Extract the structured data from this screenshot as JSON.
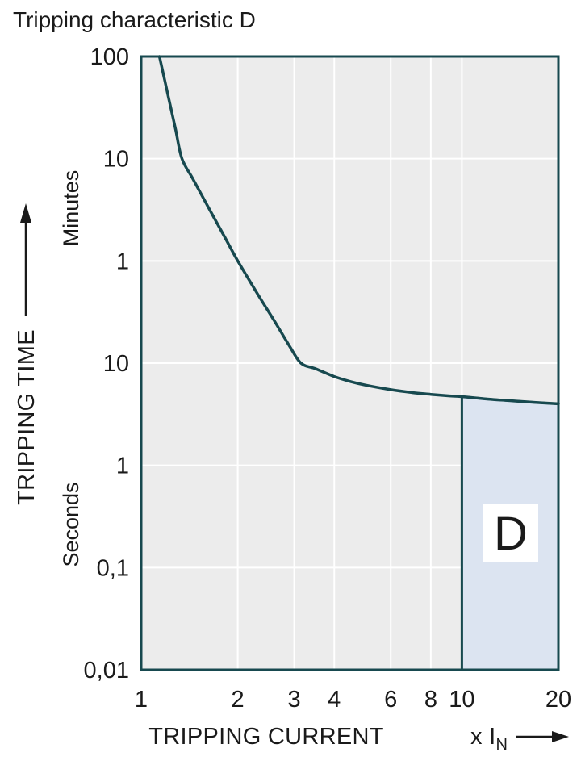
{
  "colors": {
    "line": "#17494f",
    "plot_bg": "#ececec",
    "grid": "#ffffff",
    "region_fill": "#dce4f1",
    "region_label_bg": "#ffffff",
    "text": "#1a1a1a"
  },
  "chart_data": {
    "type": "line",
    "title": "Tripping characteristic D",
    "xlabel": "TRIPPING CURRENT",
    "x_unit": "x I",
    "x_unit_sub": "N",
    "ylabel": "TRIPPING TIME",
    "y_unit_upper": "Minutes",
    "y_unit_lower": "Seconds",
    "x_scale": "log",
    "x_domain": [
      1,
      20
    ],
    "x_ticks": [
      {
        "v": 1,
        "label": "1"
      },
      {
        "v": 2,
        "label": "2"
      },
      {
        "v": 3,
        "label": "3"
      },
      {
        "v": 4,
        "label": "4"
      },
      {
        "v": 6,
        "label": "6"
      },
      {
        "v": 8,
        "label": "8"
      },
      {
        "v": 10,
        "label": "10"
      },
      {
        "v": 20,
        "label": "20"
      }
    ],
    "y_scale": "log, split into Seconds and Minutes decades",
    "y_levels_seconds": [
      0.01,
      0.1,
      1,
      10,
      60,
      600,
      6000
    ],
    "y_ticks": [
      {
        "t": 6000,
        "label": "100",
        "unit": "min"
      },
      {
        "t": 600,
        "label": "10",
        "unit": "min"
      },
      {
        "t": 60,
        "label": "1",
        "unit": "min"
      },
      {
        "t": 10,
        "label": "10",
        "unit": "s"
      },
      {
        "t": 1,
        "label": "1",
        "unit": "s"
      },
      {
        "t": 0.1,
        "label": "0,1",
        "unit": "s"
      },
      {
        "t": 0.01,
        "label": "0,01",
        "unit": "s"
      }
    ],
    "grid": true,
    "curve": {
      "name": "tripping-time-curve",
      "points_x_times_in_vs_seconds": true,
      "points": [
        [
          1.14,
          6000
        ],
        [
          1.18,
          3675
        ],
        [
          1.22,
          2290
        ],
        [
          1.28,
          1160
        ],
        [
          1.34,
          600
        ],
        [
          1.45,
          380
        ],
        [
          1.6,
          215
        ],
        [
          1.8,
          110
        ],
        [
          2.0,
          60
        ],
        [
          2.3,
          34
        ],
        [
          2.6,
          21
        ],
        [
          2.9,
          13.5
        ],
        [
          3.15,
          10
        ],
        [
          3.5,
          8.8
        ],
        [
          4.0,
          7.4
        ],
        [
          4.5,
          6.6
        ],
        [
          5.0,
          6.1
        ],
        [
          6.0,
          5.5
        ],
        [
          7.0,
          5.15
        ],
        [
          8.0,
          4.95
        ],
        [
          9.0,
          4.8
        ],
        [
          10.0,
          4.7
        ],
        [
          12.0,
          4.45
        ],
        [
          14.0,
          4.3
        ],
        [
          17.0,
          4.12
        ],
        [
          20.0,
          4.0
        ]
      ]
    },
    "region": {
      "label": "D",
      "x_range": [
        10,
        20
      ],
      "t_bottom_seconds": 0.01
    }
  }
}
